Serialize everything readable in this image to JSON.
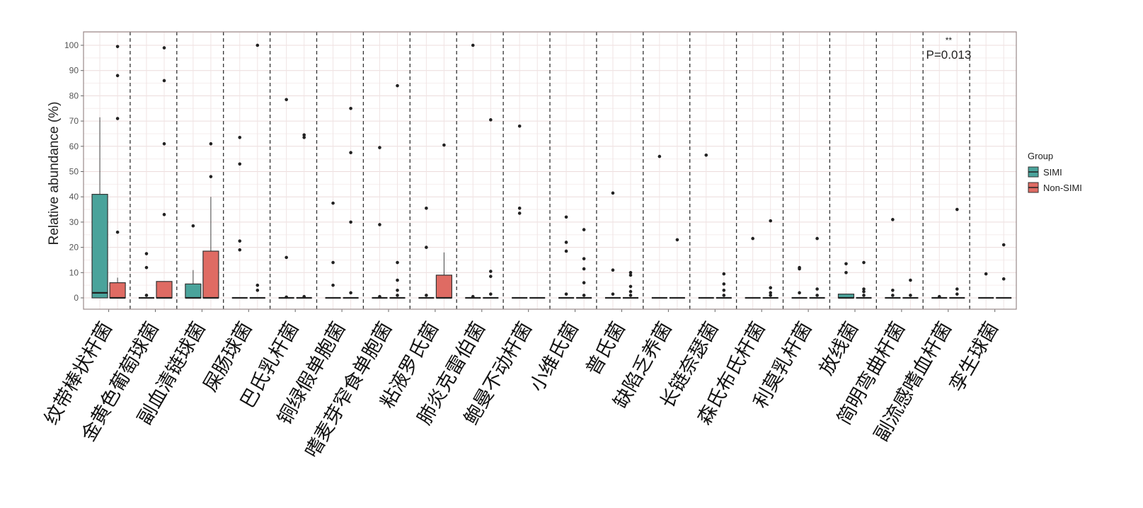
{
  "chart_data": {
    "type": "boxplot",
    "title": "",
    "xlabel": "",
    "ylabel": "Relative abundance (%)",
    "ylim": [
      0,
      100
    ],
    "yticks": [
      0,
      10,
      20,
      30,
      40,
      50,
      60,
      70,
      80,
      90,
      100
    ],
    "grid": true,
    "legend": {
      "title": "Group",
      "placement": "right",
      "entries": [
        "SIMI",
        "Non-SIMI"
      ]
    },
    "colors": {
      "SIMI": "#4aa39b",
      "Non-SIMI": "#df6b63"
    },
    "annotation": {
      "category_index": 18,
      "stars": "**",
      "text": "P=0.013"
    },
    "categories": [
      "纹带棒状杆菌",
      "金黄色葡萄球菌",
      "副血清链球菌",
      "屎肠球菌",
      "巴氏乳杆菌",
      "铜绿假单胞菌",
      "嗜麦芽窄食单胞菌",
      "粘液罗氏菌",
      "肺炎克雷伯菌",
      "鲍曼不动杆菌",
      "小维氏菌",
      "普氏菌",
      "缺陷乏养菌",
      "长链奈瑟菌",
      "森氏布氏杆菌",
      "利莫乳杆菌",
      "放线菌",
      "简明弯曲杆菌",
      "副流感嗜血杆菌",
      "孪生球菌"
    ],
    "series": [
      {
        "name": "SIMI",
        "boxes": [
          {
            "lo": 0,
            "q1": 0,
            "med": 2,
            "q3": 41,
            "hi": 71.5,
            "out": []
          },
          {
            "lo": 0,
            "q1": 0,
            "med": 0,
            "q3": 0,
            "hi": 0,
            "out": [
              1,
              12,
              17.5
            ]
          },
          {
            "lo": 0,
            "q1": 0,
            "med": 0,
            "q3": 5.5,
            "hi": 11,
            "out": [
              28.5
            ]
          },
          {
            "lo": 0,
            "q1": 0,
            "med": 0,
            "q3": 0,
            "hi": 0,
            "out": [
              19,
              22.5,
              53,
              63.5
            ]
          },
          {
            "lo": 0,
            "q1": 0,
            "med": 0,
            "q3": 0,
            "hi": 0,
            "out": [
              0.3,
              16,
              78.5
            ]
          },
          {
            "lo": 0,
            "q1": 0,
            "med": 0,
            "q3": 0,
            "hi": 0,
            "out": [
              5,
              14,
              37.5
            ]
          },
          {
            "lo": 0,
            "q1": 0,
            "med": 0,
            "q3": 0,
            "hi": 0,
            "out": [
              0.5,
              29,
              59.5
            ]
          },
          {
            "lo": 0,
            "q1": 0,
            "med": 0,
            "q3": 0,
            "hi": 0,
            "out": [
              1,
              20,
              35.5
            ]
          },
          {
            "lo": 0,
            "q1": 0,
            "med": 0,
            "q3": 0,
            "hi": 0,
            "out": [
              0.5,
              100
            ]
          },
          {
            "lo": 0,
            "q1": 0,
            "med": 0,
            "q3": 0,
            "hi": 0,
            "out": [
              33.5,
              35.5,
              68
            ]
          },
          {
            "lo": 0,
            "q1": 0,
            "med": 0,
            "q3": 0,
            "hi": 0,
            "out": [
              1.5,
              18.5,
              22,
              32
            ]
          },
          {
            "lo": 0,
            "q1": 0,
            "med": 0,
            "q3": 0,
            "hi": 0,
            "out": [
              1.5,
              11,
              41.5
            ]
          },
          {
            "lo": 0,
            "q1": 0,
            "med": 0,
            "q3": 0,
            "hi": 0,
            "out": [
              56
            ]
          },
          {
            "lo": 0,
            "q1": 0,
            "med": 0,
            "q3": 0,
            "hi": 0,
            "out": [
              56.5
            ]
          },
          {
            "lo": 0,
            "q1": 0,
            "med": 0,
            "q3": 0,
            "hi": 0,
            "out": [
              23.5
            ]
          },
          {
            "lo": 0,
            "q1": 0,
            "med": 0,
            "q3": 0,
            "hi": 0,
            "out": [
              2,
              11.5,
              12
            ]
          },
          {
            "lo": 0,
            "q1": 0,
            "med": 0,
            "q3": 1.5,
            "hi": 1.5,
            "out": [
              10,
              13.5
            ]
          },
          {
            "lo": 0,
            "q1": 0,
            "med": 0,
            "q3": 0,
            "hi": 0,
            "out": [
              1,
              3,
              31
            ]
          },
          {
            "lo": 0,
            "q1": 0,
            "med": 0,
            "q3": 0,
            "hi": 0,
            "out": [
              0.5
            ]
          },
          {
            "lo": 0,
            "q1": 0,
            "med": 0,
            "q3": 0,
            "hi": 0,
            "out": [
              9.5
            ]
          }
        ]
      },
      {
        "name": "Non-SIMI",
        "boxes": [
          {
            "lo": 0,
            "q1": 0,
            "med": 0,
            "q3": 6,
            "hi": 8,
            "out": [
              26,
              71,
              88,
              99.5
            ]
          },
          {
            "lo": 0,
            "q1": 0,
            "med": 0,
            "q3": 6.5,
            "hi": 6.5,
            "out": [
              33,
              61,
              86,
              99
            ]
          },
          {
            "lo": 0,
            "q1": 0,
            "med": 0,
            "q3": 18.5,
            "hi": 40,
            "out": [
              48,
              61
            ]
          },
          {
            "lo": 0,
            "q1": 0,
            "med": 0,
            "q3": 0,
            "hi": 0,
            "out": [
              3,
              5,
              100
            ]
          },
          {
            "lo": 0,
            "q1": 0,
            "med": 0,
            "q3": 0,
            "hi": 0,
            "out": [
              0.5,
              63.5,
              64.5
            ]
          },
          {
            "lo": 0,
            "q1": 0,
            "med": 0,
            "q3": 0,
            "hi": 0,
            "out": [
              2,
              30,
              57.5,
              75
            ]
          },
          {
            "lo": 0,
            "q1": 0,
            "med": 0,
            "q3": 0,
            "hi": 0,
            "out": [
              1,
              3,
              7,
              14,
              84
            ]
          },
          {
            "lo": 0,
            "q1": 0,
            "med": 0,
            "q3": 9,
            "hi": 18,
            "out": [
              60.5
            ]
          },
          {
            "lo": 0,
            "q1": 0,
            "med": 0,
            "q3": 0,
            "hi": 0,
            "out": [
              1.5,
              8.5,
              10.5,
              70.5
            ]
          },
          {
            "lo": 0,
            "q1": 0,
            "med": 0,
            "q3": 0,
            "hi": 0,
            "out": []
          },
          {
            "lo": 0,
            "q1": 0,
            "med": 0,
            "q3": 0,
            "hi": 0,
            "out": [
              1,
              6,
              11.5,
              15.5,
              27
            ]
          },
          {
            "lo": 0,
            "q1": 0,
            "med": 0,
            "q3": 0,
            "hi": 0,
            "out": [
              1,
              2.5,
              4.5,
              9,
              10
            ]
          },
          {
            "lo": 0,
            "q1": 0,
            "med": 0,
            "q3": 0,
            "hi": 0,
            "out": [
              23
            ]
          },
          {
            "lo": 0,
            "q1": 0,
            "med": 0,
            "q3": 0,
            "hi": 0,
            "out": [
              1,
              3,
              5.5,
              9.5
            ]
          },
          {
            "lo": 0,
            "q1": 0,
            "med": 0,
            "q3": 0,
            "hi": 0,
            "out": [
              1,
              2,
              4,
              30.5
            ]
          },
          {
            "lo": 0,
            "q1": 0,
            "med": 0,
            "q3": 0,
            "hi": 0,
            "out": [
              1,
              3.5,
              23.5
            ]
          },
          {
            "lo": 0,
            "q1": 0,
            "med": 0,
            "q3": 0,
            "hi": 0,
            "out": [
              1,
              2.5,
              3.5,
              14
            ]
          },
          {
            "lo": 0,
            "q1": 0,
            "med": 0,
            "q3": 0,
            "hi": 0,
            "out": [
              1,
              7
            ]
          },
          {
            "lo": 0,
            "q1": 0,
            "med": 0,
            "q3": 0,
            "hi": 0,
            "out": [
              1.5,
              3.5,
              35
            ]
          },
          {
            "lo": 0,
            "q1": 0,
            "med": 0,
            "q3": 0,
            "hi": 0,
            "out": [
              7.5,
              21
            ]
          }
        ]
      }
    ]
  }
}
